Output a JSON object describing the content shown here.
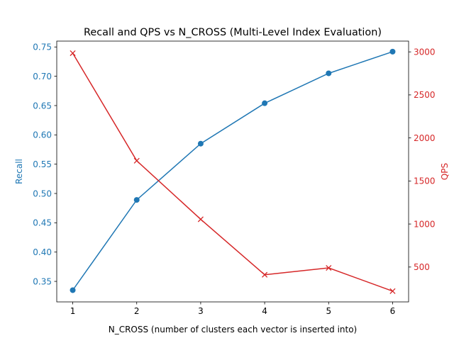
{
  "chart_data": {
    "type": "line",
    "title": "Recall and QPS vs N_CROSS (Multi-Level Index Evaluation)",
    "xlabel": "N_CROSS (number of clusters each vector is inserted into)",
    "x": [
      1,
      2,
      3,
      4,
      5,
      6
    ],
    "xlim": [
      0.75,
      6.25
    ],
    "xticks": [
      "1",
      "2",
      "3",
      "4",
      "5",
      "6"
    ],
    "grid": false,
    "legend": "none",
    "y_left": {
      "label": "Recall",
      "ylim": [
        0.315,
        0.76
      ],
      "ticks": [
        0.35,
        0.4,
        0.45,
        0.5,
        0.55,
        0.6,
        0.65,
        0.7,
        0.75
      ],
      "tick_labels": [
        "0.35",
        "0.40",
        "0.45",
        "0.50",
        "0.55",
        "0.60",
        "0.65",
        "0.70",
        "0.75"
      ],
      "color": "#1f77b4"
    },
    "y_right": {
      "label": "QPS",
      "ylim": [
        95,
        3125
      ],
      "ticks": [
        500,
        1000,
        1500,
        2000,
        2500,
        3000
      ],
      "tick_labels": [
        "500",
        "1000",
        "1500",
        "2000",
        "2500",
        "3000"
      ],
      "color": "#d62728"
    },
    "series": [
      {
        "axis": "left",
        "marker": "circle",
        "color": "#1f77b4",
        "values": [
          0.335,
          0.489,
          0.585,
          0.654,
          0.705,
          0.742
        ]
      },
      {
        "axis": "right",
        "marker": "x",
        "color": "#d62728",
        "values": [
          2985,
          1735,
          1055,
          410,
          490,
          220
        ]
      }
    ]
  }
}
